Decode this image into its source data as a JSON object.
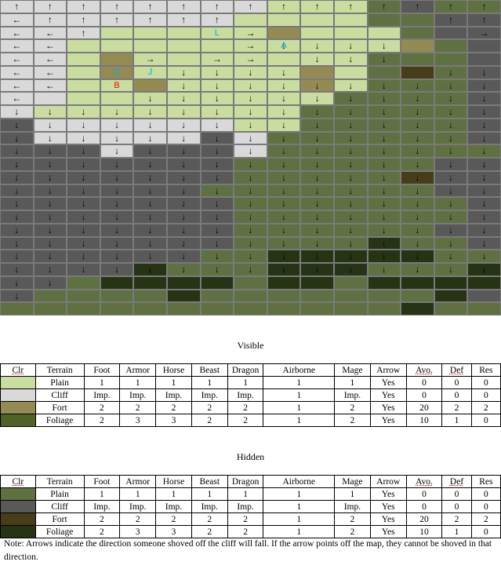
{
  "palette": {
    "P": "#c9dda0",
    "C": "#d9d9d9",
    "F": "#948a54",
    "G": "#4f6228",
    "p": "#5f7143",
    "c": "#595959",
    "f": "#473d18",
    "g": "#263314"
  },
  "label_colors": {
    "L": "#00b0d8",
    "A": "#00b0d8",
    "D": "#00b0d8",
    "J": "#00b0d8",
    "B": "#ff0000"
  },
  "map": {
    "terrain": [
      "CCCCCCCCPPPpcpp",
      "CCCCCCCPPPPppcc",
      "CCCPPPPPFPPPpcc",
      "CCPPPPPPPPPPFpc",
      "CCPFPPPPPPPpppc",
      "CCPFPPPPPFPpfpc",
      "CCPPFPPPPFPpppc",
      "CCPPPPPPPPppppc",
      "CPPPPPPPPpppppc",
      "cCCCCCCPPpppppc",
      "cCCCCCcCppppppc",
      "cccCcccCppppppp",
      "cccccccppppppcc",
      "cccccccpppppfcc",
      "ccccccpppppppcc",
      "cccccccpppppppc",
      "cccccccpppppppc",
      "cccccccppppppcc",
      "cccccccppppgppc",
      "ccccccppgggggpp",
      "ccccgpppgggpppg",
      "ccpggggpggpgggg",
      "cppppgpppppppgc",
      "ppppppppppppgpp",
      "pgpppppgppppppp"
    ],
    "arrows": [
      "↑↑↑↑↑↑↑↑↑↑↑↑↑↑↑",
      "←↑↑↑↑↑↑      ↑↑",
      "←←↑    →      →→",
      "←←     →↓↓↓↓   →",
      "←←  → →→ ↓↓↓   →",
      "←←   ↓↓↓↓    ↓↓↓",
      "←←   ↓↓↓↓↓↓↓↓↓↓",
      "←   ↓↓↓↓↓↓↓↓↓↓↓",
      "↓↓↓↓↓↓↓↓↓↓↓↓↓↓↓",
      "↓↓↓↓↓↓↓↓↓↓↓↓↓↓↓",
      "↓↓↓↓↓↓↓↓↓↓↓↓↓↓↓",
      "↓↓↓↓↓↓↓↓↓↓↓↓↓↓↓",
      "↓↓↓↓↓↓↓↓↓↓↓↓↓↓↓",
      "↓↓↓↓↓↓↓↓↓↓↓↓↓↓↓",
      "↓↓↓↓↓↓↓↓↓↓↓↓↓↓↓",
      "↓↓↓↓↓↓↓↓↓↓↓↓↓↓↓",
      "↓↓↓↓↓↓↓↓↓↓↓↓↓↓↓",
      "↓↓↓↓↓↓↓↓↓↓↓↓↓↓↓",
      "↓↓↓↓↓↓↓↓↓↓↓↓↓↓↓",
      "↓↓↓↓↓↓↓↓↓↓↓↓↓↓↓",
      "↓↓↓↓↓↓↓↓↓↓↓↓↓↓↓",
      "↓↓             ",
      "↓              ",
      "               ",
      "               "
    ],
    "labels": [
      {
        "text": "L",
        "row": 2,
        "col": 6
      },
      {
        "text": "A",
        "row": 3,
        "col": 8
      },
      {
        "text": "D",
        "row": 5,
        "col": 3
      },
      {
        "text": "J",
        "row": 5,
        "col": 4
      },
      {
        "text": "B",
        "row": 6,
        "col": 3
      }
    ]
  },
  "visible": {
    "title": "Visible",
    "headers": [
      "Clr",
      "Terrain",
      "Foot",
      "Armor",
      "Horse",
      "Beast",
      "Dragon",
      "Airborne",
      "Mage",
      "Arrow",
      "Avo.",
      "Def",
      "Res"
    ],
    "rows": [
      {
        "color": "#c9dda0",
        "terrain": "Plain",
        "foot": "1",
        "armor": "1",
        "horse": "1",
        "beast": "1",
        "dragon": "1",
        "airborne": "1",
        "mage": "1",
        "arrow": "Yes",
        "avo": "0",
        "def": "0",
        "res": "0"
      },
      {
        "color": "#d9d9d9",
        "terrain": "Cliff",
        "foot": "Imp.",
        "armor": "Imp.",
        "horse": "Imp.",
        "beast": "Imp.",
        "dragon": "Imp.",
        "airborne": "1",
        "mage": "Imp.",
        "arrow": "Yes",
        "avo": "0",
        "def": "0",
        "res": "0"
      },
      {
        "color": "#948a54",
        "terrain": "Fort",
        "foot": "2",
        "armor": "2",
        "horse": "2",
        "beast": "2",
        "dragon": "2",
        "airborne": "1",
        "mage": "2",
        "arrow": "Yes",
        "avo": "20",
        "def": "2",
        "res": "2"
      },
      {
        "color": "#4f6228",
        "terrain": "Foliage",
        "foot": "2",
        "armor": "3",
        "horse": "3",
        "beast": "2",
        "dragon": "2",
        "airborne": "1",
        "mage": "2",
        "arrow": "Yes",
        "avo": "10",
        "def": "1",
        "res": "0"
      }
    ]
  },
  "hidden": {
    "title": "Hidden",
    "headers": [
      "Clr",
      "Terrain",
      "Foot",
      "Armor",
      "Horse",
      "Beast",
      "Dragon",
      "Airborne",
      "Mage",
      "Arrow",
      "Avo.",
      "Def",
      "Res"
    ],
    "rows": [
      {
        "color": "#5f7143",
        "terrain": "Plain",
        "foot": "1",
        "armor": "1",
        "horse": "1",
        "beast": "1",
        "dragon": "1",
        "airborne": "1",
        "mage": "1",
        "arrow": "Yes",
        "avo": "0",
        "def": "0",
        "res": "0"
      },
      {
        "color": "#595959",
        "terrain": "Cliff",
        "foot": "Imp.",
        "armor": "Imp.",
        "horse": "Imp.",
        "beast": "Imp.",
        "dragon": "Imp.",
        "airborne": "1",
        "mage": "Imp.",
        "arrow": "Yes",
        "avo": "0",
        "def": "0",
        "res": "0"
      },
      {
        "color": "#473d18",
        "terrain": "Fort",
        "foot": "2",
        "armor": "2",
        "horse": "2",
        "beast": "2",
        "dragon": "2",
        "airborne": "1",
        "mage": "2",
        "arrow": "Yes",
        "avo": "20",
        "def": "2",
        "res": "2"
      },
      {
        "color": "#263314",
        "terrain": "Foliage",
        "foot": "2",
        "armor": "3",
        "horse": "3",
        "beast": "2",
        "dragon": "2",
        "airborne": "1",
        "mage": "2",
        "arrow": "Yes",
        "avo": "10",
        "def": "1",
        "res": "0"
      }
    ]
  },
  "note": "Note: Arrows indicate the direction someone shoved off the cliff will fall.  If the arrow points off the map, they cannot be shoved in that direction."
}
